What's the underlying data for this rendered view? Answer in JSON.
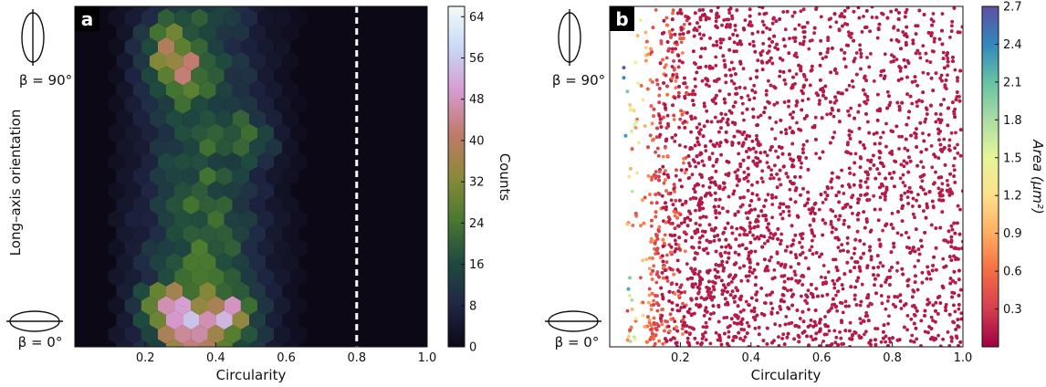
{
  "chart_data": [
    {
      "type": "heatmap",
      "panel_label": "a",
      "xlabel": "Circularity",
      "ylabel": "Long–axis orientation",
      "xlim": [
        0.0,
        1.0
      ],
      "xticks": [
        "0.2",
        "0.4",
        "0.6",
        "0.8",
        "1.0"
      ],
      "y_marker_labels": [
        "β = 90°",
        "β = 0°"
      ],
      "colorbar": {
        "label": "Counts",
        "range": [
          0,
          66
        ],
        "ticks": [
          "0",
          "8",
          "16",
          "24",
          "32",
          "40",
          "48",
          "56",
          "64"
        ],
        "colormap": [
          "#0c0816",
          "#1f2745",
          "#1f4b3f",
          "#4a7a2f",
          "#8a8a3a",
          "#c07a6a",
          "#d79ad0",
          "#c7d8f6",
          "#f3fbf6"
        ]
      },
      "vline": {
        "x": 0.8,
        "style": "dashed",
        "color": "#ffffff"
      },
      "hotspots": [
        {
          "x": 0.33,
          "y": 0.05,
          "count": 64
        },
        {
          "x": 0.26,
          "y": 0.12,
          "count": 50
        },
        {
          "x": 0.45,
          "y": 0.1,
          "count": 44
        },
        {
          "x": 0.27,
          "y": 0.82,
          "count": 40
        },
        {
          "x": 0.5,
          "y": 0.62,
          "count": 30
        },
        {
          "x": 0.25,
          "y": 0.9,
          "count": 26
        }
      ]
    },
    {
      "type": "scatter",
      "panel_label": "b",
      "xlabel": "Circularity",
      "xlim": [
        0.0,
        1.0
      ],
      "xticks": [
        "0.2",
        "0.4",
        "0.6",
        "0.8",
        "1.0"
      ],
      "y_marker_labels": [
        "β = 90°",
        "β = 0°"
      ],
      "colorbar": {
        "label": "Area (μm²)",
        "range": [
          0.0,
          2.7
        ],
        "ticks": [
          "0.3",
          "0.6",
          "0.9",
          "1.2",
          "1.5",
          "1.8",
          "2.1",
          "2.4",
          "2.7"
        ],
        "colormap": [
          "#9e0142",
          "#d53e4f",
          "#f46d43",
          "#fdae61",
          "#fee08b",
          "#e6f598",
          "#abdda4",
          "#66c2a5",
          "#3288bd",
          "#5e4fa2"
        ]
      },
      "points_description_values": {
        "min_circularity": 0.05,
        "max_circularity": 1.0,
        "dominant_area": 0.1
      }
    }
  ]
}
